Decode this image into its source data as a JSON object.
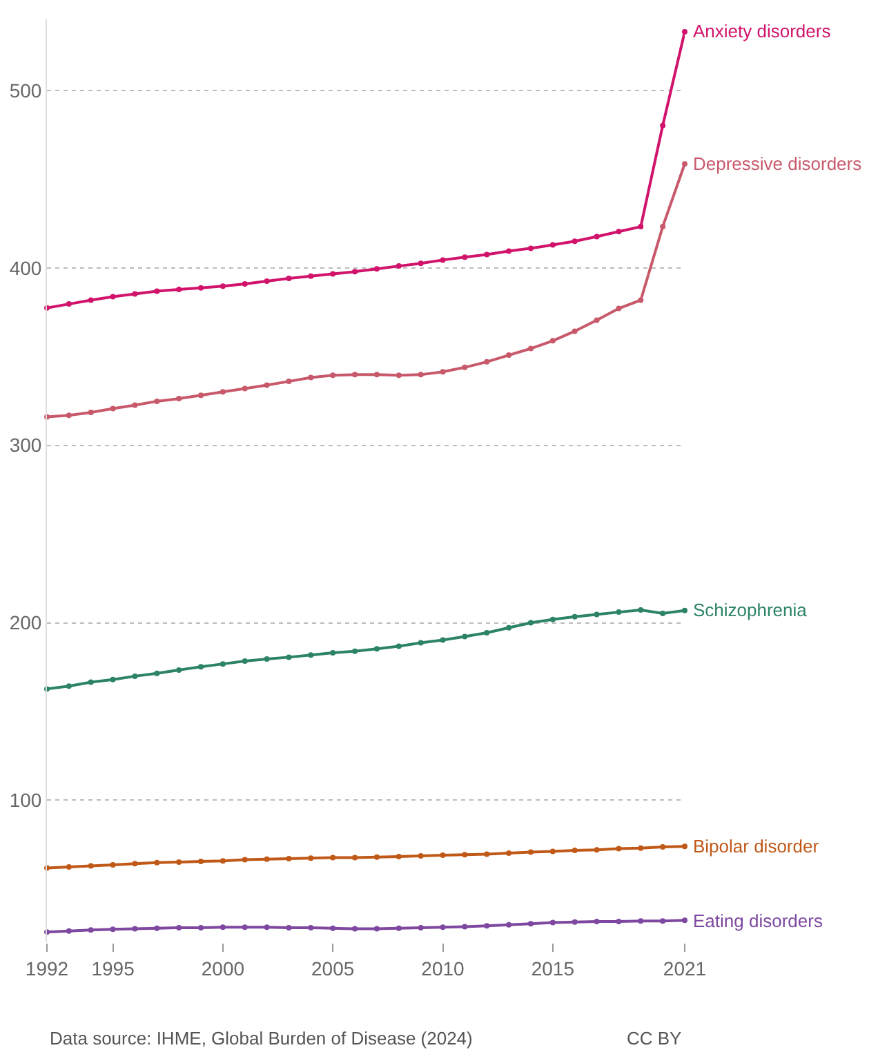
{
  "chart_data": {
    "type": "line",
    "x": [
      1992,
      1993,
      1994,
      1995,
      1996,
      1997,
      1998,
      1999,
      2000,
      2001,
      2002,
      2003,
      2004,
      2005,
      2006,
      2007,
      2008,
      2009,
      2010,
      2011,
      2012,
      2013,
      2014,
      2015,
      2016,
      2017,
      2018,
      2019,
      2020,
      2021
    ],
    "series": [
      {
        "name": "Anxiety disorders",
        "color": "#d1136b",
        "values": [
          377.4,
          379.6,
          381.8,
          383.7,
          385.3,
          386.8,
          387.8,
          388.7,
          389.7,
          390.9,
          392.5,
          394,
          395.3,
          396.6,
          397.8,
          399.4,
          401,
          402.5,
          404.4,
          406,
          407.5,
          409.4,
          411,
          412.9,
          415,
          417.6,
          420.4,
          423.2,
          480.2,
          533
        ]
      },
      {
        "name": "Depressive disorders",
        "color": "#c8596b",
        "values": [
          316,
          316.9,
          318.5,
          320.7,
          322.6,
          324.8,
          326.3,
          328.2,
          330.1,
          332,
          333.9,
          336,
          338.2,
          339.5,
          339.8,
          339.8,
          339.5,
          339.8,
          341.4,
          343.9,
          347,
          350.8,
          354.5,
          358.9,
          364.3,
          370.5,
          377.1,
          381.8,
          423.2,
          458.6
        ]
      },
      {
        "name": "Schizophrenia",
        "color": "#2c8465",
        "values": [
          162.7,
          164.3,
          166.5,
          168,
          169.9,
          171.5,
          173.4,
          175.2,
          176.8,
          178.4,
          179.6,
          180.6,
          181.8,
          183.1,
          184,
          185.3,
          186.8,
          188.7,
          190.3,
          192.2,
          194.4,
          197.2,
          200,
          201.9,
          203.4,
          204.7,
          206,
          207.2,
          205.3,
          206.9
        ]
      },
      {
        "name": "Bipolar disorder",
        "color": "#c05917",
        "values": [
          61.8,
          62.4,
          63,
          63.6,
          64.3,
          64.9,
          65.2,
          65.5,
          65.8,
          66.5,
          66.8,
          67.1,
          67.4,
          67.7,
          67.7,
          68,
          68.3,
          68.7,
          69,
          69.3,
          69.6,
          70.2,
          70.8,
          71.2,
          71.8,
          72.1,
          72.7,
          73,
          73.7,
          74
        ]
      },
      {
        "name": "Eating disorders",
        "color": "#7e48a0",
        "values": [
          25.7,
          26.3,
          26.9,
          27.3,
          27.6,
          27.9,
          28.2,
          28.2,
          28.5,
          28.5,
          28.5,
          28.2,
          28.2,
          27.9,
          27.6,
          27.6,
          27.9,
          28.2,
          28.5,
          28.8,
          29.2,
          29.8,
          30.4,
          31.1,
          31.4,
          31.7,
          31.7,
          32,
          32,
          32.4
        ]
      }
    ],
    "xlim": [
      1992,
      2021
    ],
    "xticks": [
      1992,
      1995,
      2000,
      2005,
      2010,
      2015,
      2021
    ],
    "ylim": [
      20,
      540
    ],
    "yticks": [
      100,
      200,
      300,
      400,
      500
    ],
    "grid": "y",
    "marker": "circle",
    "line_style": "solid",
    "legend": false,
    "annotations": [
      "Data source: IHME, Global Burden of Disease (2024)",
      "CC BY"
    ]
  }
}
